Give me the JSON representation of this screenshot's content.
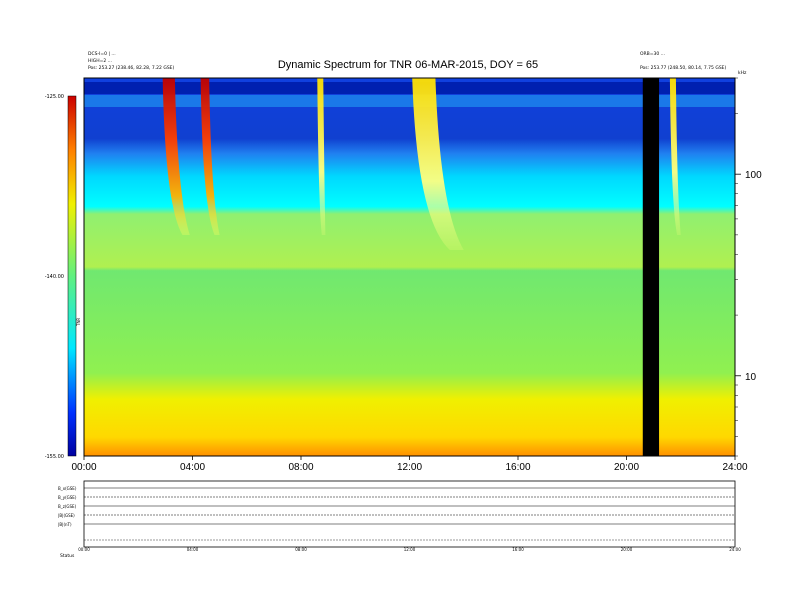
{
  "chart_data": {
    "type": "heatmap",
    "title": "Dynamic Spectrum for TNR 06-MAR-2015, DOY = 65",
    "header_left": [
      "DCS-I=0 | ...",
      "HIGH=2 ...",
      "Pos: 253.27 (238.46, 82.28, 7.22 GSE)"
    ],
    "header_right": [
      "ORB=30 ...",
      "Pos: 253.77 (248.50, 80.14, 7.75 GSE)"
    ],
    "colorbar": {
      "label": "TNR",
      "ticks": [
        "-125.00",
        "-140.00",
        "-155.00"
      ]
    },
    "right_axis": {
      "ticks": [
        "100",
        "10"
      ],
      "unit": "kHz"
    },
    "x_ticks": [
      "00:00",
      "04:00",
      "08:00",
      "12:00",
      "16:00",
      "20:00",
      "24:00"
    ],
    "xlim_hours": [
      0,
      24
    ],
    "ylim_khz": [
      4,
      300
    ],
    "y_scale": "log",
    "data_gap_hours": [
      20.6,
      21.2
    ],
    "radio_bursts": [
      {
        "start": 2.9,
        "end": 3.9
      },
      {
        "start": 4.3,
        "end": 5.0
      },
      {
        "start": 8.6,
        "end": 8.9
      },
      {
        "start": 12.1,
        "end": 14.0
      },
      {
        "start": 21.6,
        "end": 22.0
      }
    ],
    "panel_labels": [
      "B_x(GSE)",
      "B_y(GSE)",
      "B_z(GSE)",
      "|B|(GSE)",
      "|B|(nT)"
    ],
    "bottom_ticks": [
      "00:00",
      "04:00",
      "08:00",
      "12:00",
      "16:00",
      "20:00",
      "24:00"
    ],
    "footer": "Status"
  }
}
